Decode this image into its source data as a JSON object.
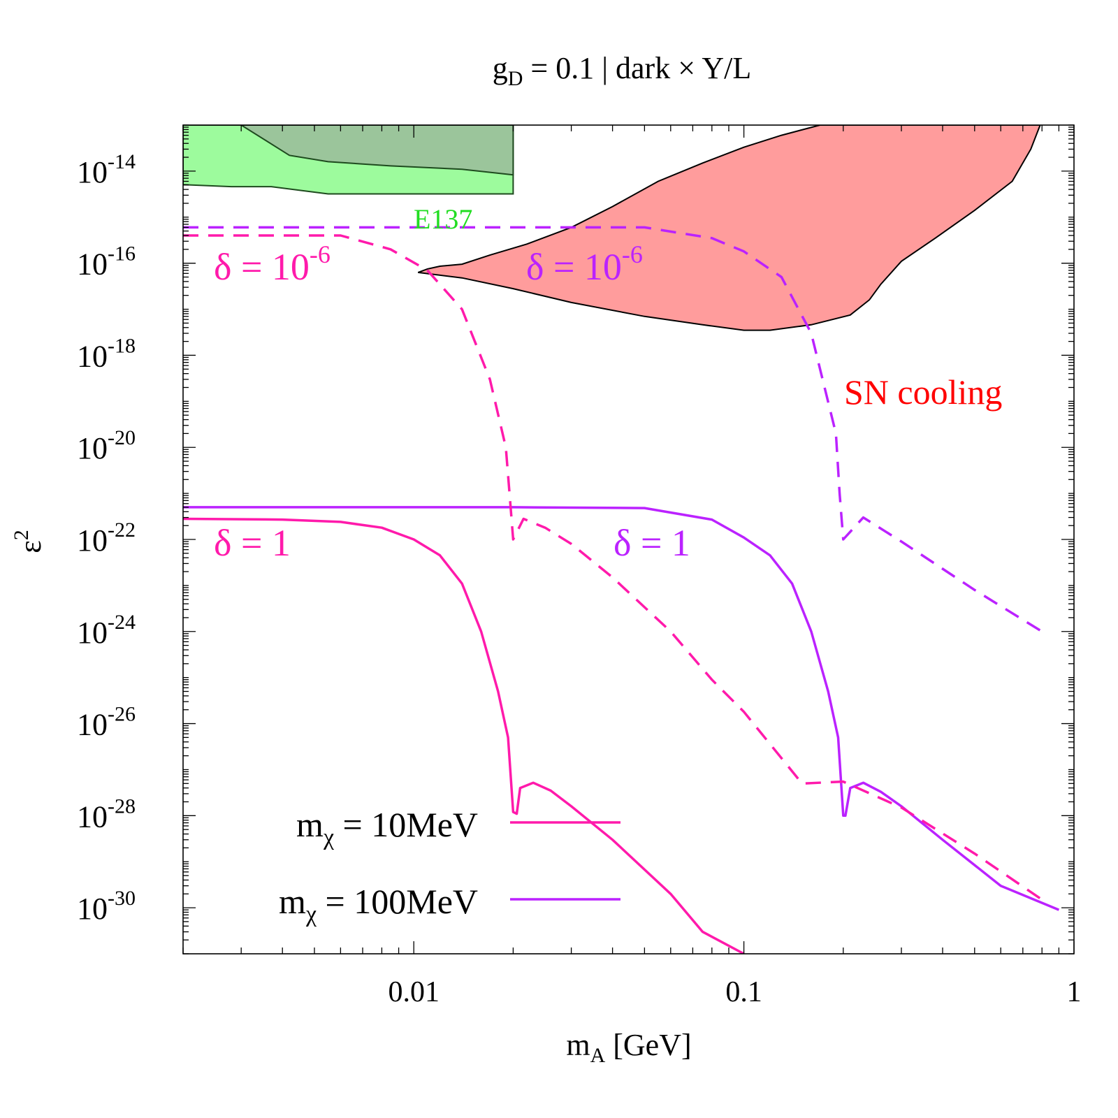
{
  "chart_data": {
    "type": "line",
    "title": {
      "main": "g",
      "sub": "D",
      "rest": " = 0.1 | dark × Y/L"
    },
    "xlabel": {
      "main": "m",
      "sub": "A",
      "rest": " [GeV]"
    },
    "ylabel": {
      "main": "ε",
      "sup": "2"
    },
    "xscale": "log",
    "yscale": "log",
    "xlim": [
      0.002,
      1
    ],
    "ylim": [
      1e-31,
      1e-13
    ],
    "xticks": [
      {
        "value": 0.01,
        "label": "0.01"
      },
      {
        "value": 0.1,
        "label": "0.1"
      },
      {
        "value": 1,
        "label": "1"
      }
    ],
    "yticks": [
      {
        "exp": -14,
        "base": "10",
        "power": "-14"
      },
      {
        "exp": -16,
        "base": "10",
        "power": "-16"
      },
      {
        "exp": -18,
        "base": "10",
        "power": "-18"
      },
      {
        "exp": -20,
        "base": "10",
        "power": "-20"
      },
      {
        "exp": -22,
        "base": "10",
        "power": "-22"
      },
      {
        "exp": -24,
        "base": "10",
        "power": "-24"
      },
      {
        "exp": -26,
        "base": "10",
        "power": "-26"
      },
      {
        "exp": -28,
        "base": "10",
        "power": "-28"
      },
      {
        "exp": -30,
        "base": "10",
        "power": "-30"
      }
    ],
    "colors": {
      "m10": "#ff1aab",
      "m100": "#bb22ff",
      "sn_fill": "#ff9c9c",
      "sn_label": "#ff0000",
      "e137_light": "#9dfb9d",
      "e137_dark": "#9bc59b",
      "e137_label": "#22dd22"
    },
    "regions": [
      {
        "name": "E137 (light)",
        "color_key": "e137_light",
        "points": [
          [
            0.002,
            1e-13
          ],
          [
            0.02,
            1e-13
          ],
          [
            0.02,
            3.2e-15
          ],
          [
            0.0055,
            3.2e-15
          ],
          [
            0.0037,
            4.6e-15
          ],
          [
            0.0028,
            4.6e-15
          ],
          [
            0.002,
            5.1e-15
          ]
        ]
      },
      {
        "name": "E137 (dark)",
        "color_key": "e137_dark",
        "points": [
          [
            0.003,
            1e-13
          ],
          [
            0.02,
            1e-13
          ],
          [
            0.02,
            8.3e-15
          ],
          [
            0.014,
            1.1e-14
          ],
          [
            0.0085,
            1.3e-14
          ],
          [
            0.0055,
            1.6e-14
          ],
          [
            0.0042,
            2.2e-14
          ],
          [
            0.003,
            1e-13
          ]
        ]
      },
      {
        "name": "SN cooling",
        "color_key": "sn_fill",
        "points": [
          [
            0.0103,
            6.3e-17
          ],
          [
            0.011,
            7.5e-17
          ],
          [
            0.012,
            8.6e-17
          ],
          [
            0.014,
            9.5e-17
          ],
          [
            0.017,
            1.5e-16
          ],
          [
            0.022,
            2.6e-16
          ],
          [
            0.03,
            6e-16
          ],
          [
            0.04,
            1.7e-15
          ],
          [
            0.055,
            6e-15
          ],
          [
            0.075,
            1.5e-14
          ],
          [
            0.1,
            3.3e-14
          ],
          [
            0.13,
            6e-14
          ],
          [
            0.17,
            1e-13
          ],
          [
            0.79,
            1e-13
          ],
          [
            0.74,
            3e-14
          ],
          [
            0.65,
            6e-15
          ],
          [
            0.5,
            1.4e-15
          ],
          [
            0.38,
            3.5e-16
          ],
          [
            0.3,
            1.1e-16
          ],
          [
            0.26,
            3.5e-17
          ],
          [
            0.24,
            1.6e-17
          ],
          [
            0.21,
            7.5e-18
          ],
          [
            0.16,
            4.6e-18
          ],
          [
            0.12,
            3.5e-18
          ],
          [
            0.1,
            3.5e-18
          ],
          [
            0.075,
            4.6e-18
          ],
          [
            0.05,
            7e-18
          ],
          [
            0.03,
            1.4e-17
          ],
          [
            0.02,
            2.8e-17
          ],
          [
            0.014,
            4.8e-17
          ],
          [
            0.0103,
            6.3e-17
          ]
        ]
      }
    ],
    "series": [
      {
        "name": "mχ = 10MeV, δ = 1",
        "color_key": "m10",
        "style": "solid",
        "points": [
          [
            0.002,
            2.8e-22
          ],
          [
            0.004,
            2.7e-22
          ],
          [
            0.006,
            2.4e-22
          ],
          [
            0.008,
            1.8e-22
          ],
          [
            0.01,
            1e-22
          ],
          [
            0.012,
            4.5e-23
          ],
          [
            0.014,
            1.1e-23
          ],
          [
            0.016,
            1e-24
          ],
          [
            0.018,
            5e-26
          ],
          [
            0.0193,
            5e-27
          ],
          [
            0.02,
            1.2e-28
          ],
          [
            0.0205,
            1.1e-28
          ],
          [
            0.021,
            4e-28
          ],
          [
            0.023,
            5.2e-28
          ],
          [
            0.026,
            3.5e-28
          ],
          [
            0.03,
            1.6e-28
          ],
          [
            0.04,
            3e-29
          ],
          [
            0.06,
            2e-30
          ],
          [
            0.075,
            3e-31
          ],
          [
            0.1,
            1e-31
          ]
        ]
      },
      {
        "name": "mχ = 100MeV, δ = 1",
        "color_key": "m100",
        "style": "solid",
        "points": [
          [
            0.002,
            5e-22
          ],
          [
            0.02,
            5e-22
          ],
          [
            0.05,
            4.8e-22
          ],
          [
            0.08,
            2.7e-22
          ],
          [
            0.1,
            1.1e-22
          ],
          [
            0.12,
            4.5e-23
          ],
          [
            0.14,
            1.1e-23
          ],
          [
            0.16,
            1e-24
          ],
          [
            0.18,
            5e-26
          ],
          [
            0.193,
            5e-27
          ],
          [
            0.2,
            1e-28
          ],
          [
            0.203,
            1e-28
          ],
          [
            0.21,
            4e-28
          ],
          [
            0.23,
            5.2e-28
          ],
          [
            0.26,
            3.3e-28
          ],
          [
            0.3,
            1.6e-28
          ],
          [
            0.4,
            3e-29
          ],
          [
            0.6,
            3e-30
          ],
          [
            0.9,
            9e-31
          ]
        ]
      },
      {
        "name": "mχ = 10MeV, δ = 10⁻⁶",
        "color_key": "m10",
        "style": "dashed",
        "points": [
          [
            0.002,
            4e-16
          ],
          [
            0.006,
            4e-16
          ],
          [
            0.0085,
            2e-16
          ],
          [
            0.011,
            7e-17
          ],
          [
            0.014,
            1e-17
          ],
          [
            0.017,
            3e-19
          ],
          [
            0.019,
            1e-20
          ],
          [
            0.0195,
            1e-21
          ],
          [
            0.02,
            1e-22
          ],
          [
            0.0215,
            2.8e-22
          ],
          [
            0.025,
            1.8e-22
          ],
          [
            0.03,
            8e-23
          ],
          [
            0.04,
            1.5e-23
          ],
          [
            0.06,
            1e-24
          ],
          [
            0.08,
            9e-26
          ],
          [
            0.1,
            1.8e-26
          ],
          [
            0.15,
            5e-28
          ],
          [
            0.2,
            5.5e-28
          ],
          [
            0.3,
            1.5e-28
          ],
          [
            0.5,
            1.5e-29
          ],
          [
            0.8,
            1.5e-30
          ]
        ]
      },
      {
        "name": "mχ = 100MeV, δ = 10⁻⁶",
        "color_key": "m100",
        "style": "dashed",
        "points": [
          [
            0.002,
            6e-16
          ],
          [
            0.05,
            6e-16
          ],
          [
            0.08,
            3.5e-16
          ],
          [
            0.1,
            1.8e-16
          ],
          [
            0.13,
            5e-17
          ],
          [
            0.16,
            3e-18
          ],
          [
            0.19,
            2e-20
          ],
          [
            0.195,
            1e-21
          ],
          [
            0.2,
            1e-22
          ],
          [
            0.23,
            3e-22
          ],
          [
            0.3,
            9e-23
          ],
          [
            0.5,
            8e-24
          ],
          [
            0.8,
            1e-24
          ]
        ]
      }
    ],
    "annotations": [
      {
        "text": "E137",
        "color_key": "e137_label"
      },
      {
        "text": "SN cooling",
        "color_key": "sn_label"
      },
      {
        "text": "δ = 10",
        "sup": "-6",
        "color_key": "m10"
      },
      {
        "text": "δ = 10",
        "sup": "-6",
        "color_key": "m100"
      },
      {
        "text": "δ = 1",
        "color_key": "m10"
      },
      {
        "text": "δ = 1",
        "color_key": "m100"
      }
    ],
    "legend": {
      "position": "bottom-left",
      "entries": [
        {
          "main": "m",
          "sub": "χ",
          "rest": " = 10MeV",
          "color_key": "m10"
        },
        {
          "main": "m",
          "sub": "χ",
          "rest": " = 100MeV",
          "color_key": "m100"
        }
      ]
    }
  }
}
